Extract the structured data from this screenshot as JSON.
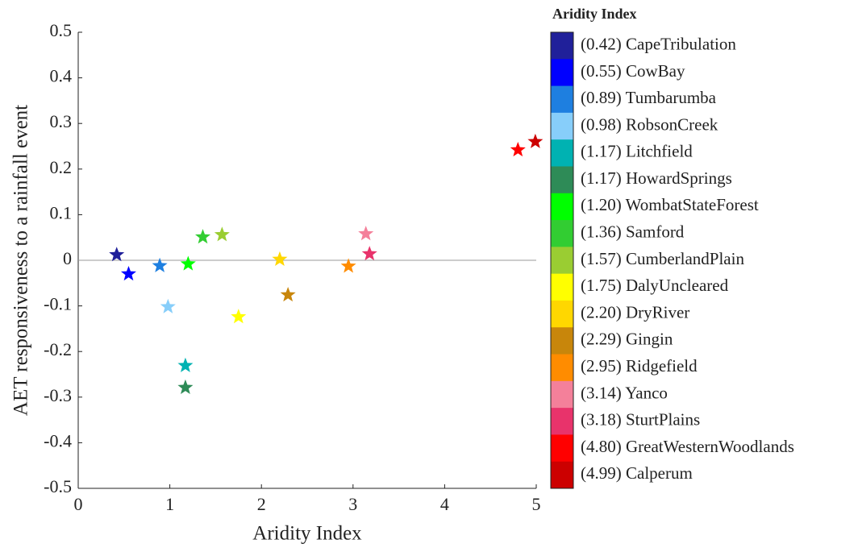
{
  "chart_data": {
    "type": "scatter",
    "x_label": "Aridity Index",
    "y_label": "AET responsiveness to a rainfall event",
    "legend_title": "Aridity Index",
    "xlim": [
      0,
      5
    ],
    "xticks": [
      0,
      1,
      2,
      3,
      4,
      5
    ],
    "ylim": [
      -0.5,
      0.5
    ],
    "yticks": [
      -0.5,
      -0.4,
      -0.3,
      -0.2,
      -0.1,
      0,
      0.1,
      0.2,
      0.3,
      0.4,
      0.5
    ],
    "zero_line": true,
    "legend": "right",
    "series": [
      {
        "name": "(0.42)  CapeTribulation",
        "color": "#20209a",
        "x": [
          0.42
        ],
        "values": [
          0.012
        ]
      },
      {
        "name": "(0.55)  CowBay",
        "color": "#0000ff",
        "x": [
          0.55
        ],
        "values": [
          -0.03
        ]
      },
      {
        "name": "(0.89)  Tumbarumba",
        "color": "#1e7fe0",
        "x": [
          0.89
        ],
        "values": [
          -0.012
        ]
      },
      {
        "name": "(0.98)  RobsonCreek",
        "color": "#87cefa",
        "x": [
          0.98
        ],
        "values": [
          -0.102
        ]
      },
      {
        "name": "(1.17)  Litchfield",
        "color": "#00b2b2",
        "x": [
          1.17
        ],
        "values": [
          -0.231
        ]
      },
      {
        "name": "(1.17)  HowardSprings",
        "color": "#2e8b57",
        "x": [
          1.17
        ],
        "values": [
          -0.279
        ]
      },
      {
        "name": "(1.20)  WombatStateForest",
        "color": "#00ff00",
        "x": [
          1.2
        ],
        "values": [
          -0.008
        ]
      },
      {
        "name": "(1.36)  Samford",
        "color": "#32cd32",
        "x": [
          1.36
        ],
        "values": [
          0.051
        ]
      },
      {
        "name": "(1.57)  CumberlandPlain",
        "color": "#9acd32",
        "x": [
          1.57
        ],
        "values": [
          0.056
        ]
      },
      {
        "name": "(1.75)  DalyUncleared",
        "color": "#ffff00",
        "x": [
          1.75
        ],
        "values": [
          -0.124
        ]
      },
      {
        "name": "(2.20)  DryRiver",
        "color": "#ffd700",
        "x": [
          2.2
        ],
        "values": [
          0.002
        ]
      },
      {
        "name": "(2.29)  Gingin",
        "color": "#c8860b",
        "x": [
          2.29
        ],
        "values": [
          -0.076
        ]
      },
      {
        "name": "(2.95)  Ridgefield",
        "color": "#ff8c00",
        "x": [
          2.95
        ],
        "values": [
          -0.013
        ]
      },
      {
        "name": "(3.14)  Yanco",
        "color": "#f4809a",
        "x": [
          3.14
        ],
        "values": [
          0.058
        ]
      },
      {
        "name": "(3.18)  SturtPlains",
        "color": "#e8336b",
        "x": [
          3.18
        ],
        "values": [
          0.014
        ]
      },
      {
        "name": "(4.80)  GreatWesternWoodlands",
        "color": "#ff0000",
        "x": [
          4.8
        ],
        "values": [
          0.242
        ]
      },
      {
        "name": "(4.99)  Calperum",
        "color": "#cc0000",
        "x": [
          4.99
        ],
        "values": [
          0.26
        ]
      }
    ]
  }
}
